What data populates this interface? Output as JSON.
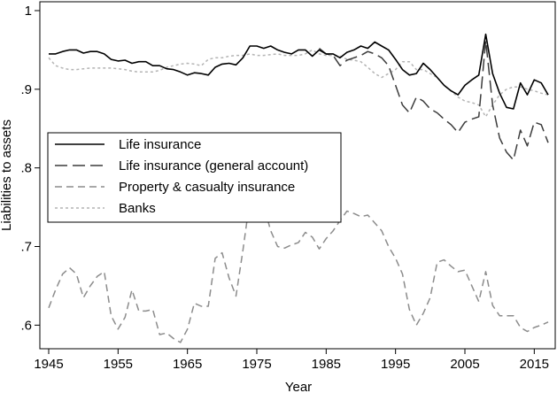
{
  "chart_data": {
    "type": "line",
    "xlabel": "Year",
    "ylabel": "Liabilities to assets",
    "xlim": [
      1945,
      2017
    ],
    "ylim": [
      0.57,
      1.0
    ],
    "grid": false,
    "legend_position": "center-left",
    "x_ticks": [
      1945,
      1955,
      1965,
      1975,
      1985,
      1995,
      2005,
      2015
    ],
    "x_tick_labels": [
      "1945",
      "1955",
      "1965",
      "1975",
      "1985",
      "1995",
      "2005",
      "2015"
    ],
    "y_ticks": [
      0.6,
      0.7,
      0.8,
      0.9,
      1.0
    ],
    "y_tick_labels": [
      ".6",
      ".7",
      ".8",
      ".9",
      "1"
    ],
    "series": [
      {
        "name": "Life insurance",
        "color": "#000000",
        "dash": "solid",
        "points": [
          [
            1945,
            0.945
          ],
          [
            1946,
            0.945
          ],
          [
            1947,
            0.948
          ],
          [
            1948,
            0.95
          ],
          [
            1949,
            0.95
          ],
          [
            1950,
            0.946
          ],
          [
            1951,
            0.948
          ],
          [
            1952,
            0.948
          ],
          [
            1953,
            0.945
          ],
          [
            1954,
            0.938
          ],
          [
            1955,
            0.936
          ],
          [
            1956,
            0.937
          ],
          [
            1957,
            0.933
          ],
          [
            1958,
            0.935
          ],
          [
            1959,
            0.935
          ],
          [
            1960,
            0.93
          ],
          [
            1961,
            0.93
          ],
          [
            1962,
            0.926
          ],
          [
            1963,
            0.925
          ],
          [
            1964,
            0.922
          ],
          [
            1965,
            0.918
          ],
          [
            1966,
            0.921
          ],
          [
            1967,
            0.92
          ],
          [
            1968,
            0.918
          ],
          [
            1969,
            0.928
          ],
          [
            1970,
            0.932
          ],
          [
            1971,
            0.933
          ],
          [
            1972,
            0.931
          ],
          [
            1973,
            0.94
          ],
          [
            1974,
            0.955
          ],
          [
            1975,
            0.955
          ],
          [
            1976,
            0.952
          ],
          [
            1977,
            0.955
          ],
          [
            1978,
            0.95
          ],
          [
            1979,
            0.947
          ],
          [
            1980,
            0.945
          ],
          [
            1981,
            0.95
          ],
          [
            1982,
            0.95
          ],
          [
            1983,
            0.942
          ],
          [
            1984,
            0.95
          ],
          [
            1985,
            0.945
          ],
          [
            1986,
            0.945
          ],
          [
            1987,
            0.94
          ],
          [
            1988,
            0.947
          ],
          [
            1989,
            0.95
          ],
          [
            1990,
            0.955
          ],
          [
            1991,
            0.952
          ],
          [
            1992,
            0.96
          ],
          [
            1993,
            0.955
          ],
          [
            1994,
            0.95
          ],
          [
            1995,
            0.938
          ],
          [
            1996,
            0.925
          ],
          [
            1997,
            0.918
          ],
          [
            1998,
            0.92
          ],
          [
            1999,
            0.933
          ],
          [
            2000,
            0.925
          ],
          [
            2001,
            0.915
          ],
          [
            2002,
            0.905
          ],
          [
            2003,
            0.898
          ],
          [
            2004,
            0.893
          ],
          [
            2005,
            0.905
          ],
          [
            2006,
            0.912
          ],
          [
            2007,
            0.918
          ],
          [
            2008,
            0.97
          ],
          [
            2009,
            0.92
          ],
          [
            2010,
            0.895
          ],
          [
            2011,
            0.877
          ],
          [
            2012,
            0.875
          ],
          [
            2013,
            0.908
          ],
          [
            2014,
            0.893
          ],
          [
            2015,
            0.912
          ],
          [
            2016,
            0.908
          ],
          [
            2017,
            0.893
          ]
        ]
      },
      {
        "name": "Life insurance (general account)",
        "color": "#3c3c3c",
        "dash": "long",
        "points": [
          [
            1984,
            0.952
          ],
          [
            1985,
            0.945
          ],
          [
            1986,
            0.943
          ],
          [
            1987,
            0.93
          ],
          [
            1988,
            0.937
          ],
          [
            1989,
            0.94
          ],
          [
            1990,
            0.943
          ],
          [
            1991,
            0.948
          ],
          [
            1992,
            0.945
          ],
          [
            1993,
            0.94
          ],
          [
            1994,
            0.93
          ],
          [
            1995,
            0.905
          ],
          [
            1996,
            0.88
          ],
          [
            1997,
            0.87
          ],
          [
            1998,
            0.89
          ],
          [
            1999,
            0.885
          ],
          [
            2000,
            0.875
          ],
          [
            2001,
            0.87
          ],
          [
            2002,
            0.862
          ],
          [
            2003,
            0.855
          ],
          [
            2004,
            0.845
          ],
          [
            2005,
            0.858
          ],
          [
            2006,
            0.862
          ],
          [
            2007,
            0.865
          ],
          [
            2008,
            0.962
          ],
          [
            2009,
            0.88
          ],
          [
            2010,
            0.838
          ],
          [
            2011,
            0.82
          ],
          [
            2012,
            0.81
          ],
          [
            2013,
            0.848
          ],
          [
            2014,
            0.828
          ],
          [
            2015,
            0.858
          ],
          [
            2016,
            0.855
          ],
          [
            2017,
            0.832
          ]
        ]
      },
      {
        "name": "Property & casualty insurance",
        "color": "#8c8c8c",
        "dash": "medium",
        "points": [
          [
            1945,
            0.622
          ],
          [
            1946,
            0.645
          ],
          [
            1947,
            0.665
          ],
          [
            1948,
            0.673
          ],
          [
            1949,
            0.665
          ],
          [
            1950,
            0.635
          ],
          [
            1951,
            0.65
          ],
          [
            1952,
            0.662
          ],
          [
            1953,
            0.668
          ],
          [
            1954,
            0.612
          ],
          [
            1955,
            0.595
          ],
          [
            1956,
            0.61
          ],
          [
            1957,
            0.645
          ],
          [
            1958,
            0.618
          ],
          [
            1959,
            0.618
          ],
          [
            1960,
            0.62
          ],
          [
            1961,
            0.588
          ],
          [
            1962,
            0.59
          ],
          [
            1963,
            0.583
          ],
          [
            1964,
            0.578
          ],
          [
            1965,
            0.595
          ],
          [
            1966,
            0.628
          ],
          [
            1967,
            0.624
          ],
          [
            1968,
            0.624
          ],
          [
            1969,
            0.685
          ],
          [
            1970,
            0.692
          ],
          [
            1971,
            0.66
          ],
          [
            1972,
            0.637
          ],
          [
            1973,
            0.695
          ],
          [
            1974,
            0.76
          ],
          [
            1975,
            0.735
          ],
          [
            1976,
            0.752
          ],
          [
            1977,
            0.72
          ],
          [
            1978,
            0.7
          ],
          [
            1979,
            0.698
          ],
          [
            1980,
            0.702
          ],
          [
            1981,
            0.705
          ],
          [
            1982,
            0.718
          ],
          [
            1983,
            0.712
          ],
          [
            1984,
            0.697
          ],
          [
            1985,
            0.71
          ],
          [
            1986,
            0.72
          ],
          [
            1987,
            0.733
          ],
          [
            1988,
            0.745
          ],
          [
            1989,
            0.742
          ],
          [
            1990,
            0.738
          ],
          [
            1991,
            0.74
          ],
          [
            1992,
            0.73
          ],
          [
            1993,
            0.72
          ],
          [
            1994,
            0.7
          ],
          [
            1995,
            0.685
          ],
          [
            1996,
            0.665
          ],
          [
            1997,
            0.62
          ],
          [
            1998,
            0.6
          ],
          [
            1999,
            0.615
          ],
          [
            2000,
            0.635
          ],
          [
            2001,
            0.68
          ],
          [
            2002,
            0.683
          ],
          [
            2003,
            0.675
          ],
          [
            2004,
            0.668
          ],
          [
            2005,
            0.67
          ],
          [
            2006,
            0.65
          ],
          [
            2007,
            0.63
          ],
          [
            2008,
            0.668
          ],
          [
            2009,
            0.625
          ],
          [
            2010,
            0.612
          ],
          [
            2011,
            0.612
          ],
          [
            2012,
            0.612
          ],
          [
            2013,
            0.597
          ],
          [
            2014,
            0.592
          ],
          [
            2015,
            0.597
          ],
          [
            2016,
            0.6
          ],
          [
            2017,
            0.604
          ]
        ]
      },
      {
        "name": "Banks",
        "color": "#b4b4b4",
        "dash": "dotted",
        "points": [
          [
            1945,
            0.94
          ],
          [
            1946,
            0.93
          ],
          [
            1947,
            0.927
          ],
          [
            1948,
            0.925
          ],
          [
            1949,
            0.925
          ],
          [
            1950,
            0.926
          ],
          [
            1951,
            0.927
          ],
          [
            1952,
            0.927
          ],
          [
            1953,
            0.927
          ],
          [
            1954,
            0.927
          ],
          [
            1955,
            0.926
          ],
          [
            1956,
            0.925
          ],
          [
            1957,
            0.923
          ],
          [
            1958,
            0.922
          ],
          [
            1959,
            0.922
          ],
          [
            1960,
            0.922
          ],
          [
            1961,
            0.924
          ],
          [
            1962,
            0.928
          ],
          [
            1963,
            0.93
          ],
          [
            1964,
            0.932
          ],
          [
            1965,
            0.933
          ],
          [
            1966,
            0.932
          ],
          [
            1967,
            0.93
          ],
          [
            1968,
            0.938
          ],
          [
            1969,
            0.94
          ],
          [
            1970,
            0.94
          ],
          [
            1971,
            0.942
          ],
          [
            1972,
            0.943
          ],
          [
            1973,
            0.943
          ],
          [
            1974,
            0.945
          ],
          [
            1975,
            0.943
          ],
          [
            1976,
            0.943
          ],
          [
            1977,
            0.944
          ],
          [
            1978,
            0.945
          ],
          [
            1979,
            0.943
          ],
          [
            1980,
            0.943
          ],
          [
            1981,
            0.943
          ],
          [
            1982,
            0.945
          ],
          [
            1983,
            0.95
          ],
          [
            1984,
            0.945
          ],
          [
            1985,
            0.943
          ],
          [
            1986,
            0.943
          ],
          [
            1987,
            0.942
          ],
          [
            1988,
            0.938
          ],
          [
            1989,
            0.937
          ],
          [
            1990,
            0.935
          ],
          [
            1991,
            0.928
          ],
          [
            1992,
            0.92
          ],
          [
            1993,
            0.915
          ],
          [
            1994,
            0.92
          ],
          [
            1995,
            0.925
          ],
          [
            1996,
            0.935
          ],
          [
            1997,
            0.935
          ],
          [
            1998,
            0.925
          ],
          [
            1999,
            0.925
          ],
          [
            2000,
            0.92
          ],
          [
            2001,
            0.915
          ],
          [
            2002,
            0.905
          ],
          [
            2003,
            0.898
          ],
          [
            2004,
            0.89
          ],
          [
            2005,
            0.885
          ],
          [
            2006,
            0.883
          ],
          [
            2007,
            0.88
          ],
          [
            2008,
            0.865
          ],
          [
            2009,
            0.88
          ],
          [
            2010,
            0.893
          ],
          [
            2011,
            0.9
          ],
          [
            2012,
            0.903
          ],
          [
            2013,
            0.903
          ],
          [
            2014,
            0.9
          ],
          [
            2015,
            0.898
          ],
          [
            2016,
            0.895
          ],
          [
            2017,
            0.893
          ]
        ]
      }
    ]
  }
}
